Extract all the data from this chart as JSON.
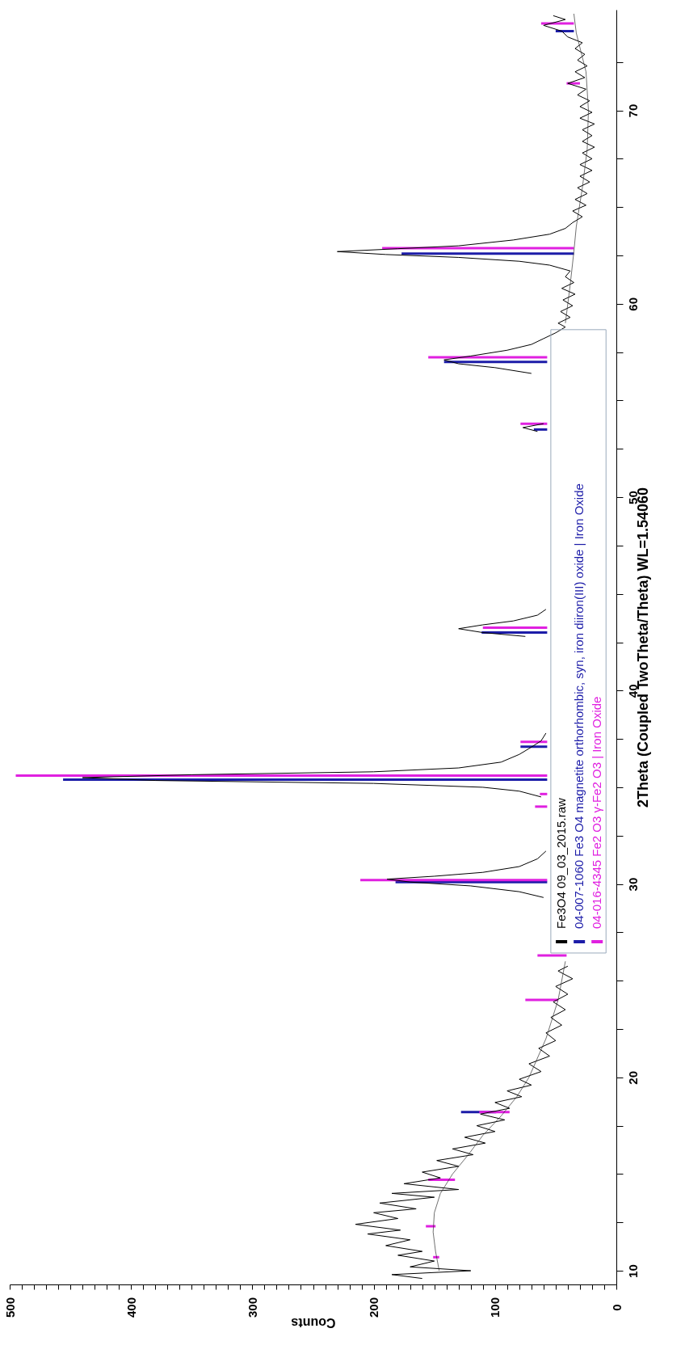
{
  "chart_data": {
    "type": "line",
    "orientation": "horizontal",
    "ylabel": "2Theta (Coupled TwoTheta/Theta) WL=1.54060",
    "xlabel": "Counts",
    "ylim": [
      9.5,
      75
    ],
    "xlim": [
      500,
      0
    ],
    "grid": false,
    "legend": "bottom",
    "yticks": [
      10,
      {
        "value": 12.5,
        "label": null
      },
      {
        "value": 15,
        "label": null
      },
      {
        "value": 17.5,
        "label": null
      },
      20,
      {
        "value": 22.5,
        "label": null
      },
      {
        "value": 25,
        "label": null
      },
      {
        "value": 27.5,
        "label": null
      },
      30,
      {
        "value": 32.5,
        "label": null
      },
      {
        "value": 35,
        "label": null
      },
      {
        "value": 37.5,
        "label": null
      },
      40,
      {
        "value": 42.5,
        "label": null
      },
      {
        "value": 45,
        "label": null
      },
      {
        "value": 47.5,
        "label": null
      },
      50,
      {
        "value": 52.5,
        "label": null
      },
      {
        "value": 55,
        "label": null
      },
      {
        "value": 57.5,
        "label": null
      },
      60,
      {
        "value": 62.5,
        "label": null
      },
      {
        "value": 65,
        "label": null
      },
      {
        "value": 67.5,
        "label": null
      },
      70,
      {
        "value": 72.5,
        "label": null
      }
    ],
    "xticks": [
      0,
      {
        "value": 10,
        "label": null
      },
      {
        "value": 20,
        "label": null
      },
      {
        "value": 30,
        "label": null
      },
      {
        "value": 40,
        "label": null
      },
      {
        "value": 50,
        "label": null
      },
      {
        "value": 60,
        "label": null
      },
      {
        "value": 70,
        "label": null
      },
      {
        "value": 80,
        "label": null
      },
      {
        "value": 90,
        "label": null
      },
      100,
      {
        "value": 110,
        "label": null
      },
      {
        "value": 120,
        "label": null
      },
      {
        "value": 130,
        "label": null
      },
      {
        "value": 140,
        "label": null
      },
      {
        "value": 150,
        "label": null
      },
      {
        "value": 160,
        "label": null
      },
      {
        "value": 170,
        "label": null
      },
      {
        "value": 180,
        "label": null
      },
      {
        "value": 190,
        "label": null
      },
      200,
      {
        "value": 210,
        "label": null
      },
      {
        "value": 220,
        "label": null
      },
      {
        "value": 230,
        "label": null
      },
      {
        "value": 240,
        "label": null
      },
      {
        "value": 250,
        "label": null
      },
      {
        "value": 260,
        "label": null
      },
      {
        "value": 270,
        "label": null
      },
      {
        "value": 280,
        "label": null
      },
      {
        "value": 290,
        "label": null
      },
      300,
      {
        "value": 310,
        "label": null
      },
      {
        "value": 320,
        "label": null
      },
      {
        "value": 330,
        "label": null
      },
      {
        "value": 340,
        "label": null
      },
      {
        "value": 350,
        "label": null
      },
      {
        "value": 360,
        "label": null
      },
      {
        "value": 370,
        "label": null
      },
      {
        "value": 380,
        "label": null
      },
      {
        "value": 390,
        "label": null
      },
      400,
      {
        "value": 410,
        "label": null
      },
      {
        "value": 420,
        "label": null
      },
      {
        "value": 430,
        "label": null
      },
      {
        "value": 440,
        "label": null
      },
      {
        "value": 450,
        "label": null
      },
      {
        "value": 460,
        "label": null
      },
      {
        "value": 470,
        "label": null
      },
      {
        "value": 480,
        "label": null
      },
      {
        "value": 490,
        "label": null
      },
      500
    ],
    "series": [
      {
        "name": "Fe3O4 09_03_2015.raw",
        "color": "#000000",
        "x": [
          9.6,
          9.8,
          10.0,
          10.2,
          10.5,
          10.8,
          11.0,
          11.3,
          11.6,
          11.9,
          12.1,
          12.4,
          12.7,
          13.0,
          13.2,
          13.5,
          13.8,
          14.0,
          14.2,
          14.5,
          14.8,
          15.1,
          15.4,
          15.7,
          16.0,
          16.3,
          16.6,
          16.9,
          17.2,
          17.5,
          17.8,
          18.1,
          18.4,
          18.7,
          19.0,
          19.3,
          19.6,
          19.9,
          20.3,
          20.7,
          21.1,
          21.5,
          21.9,
          22.3,
          22.7,
          23.1,
          23.5,
          23.9,
          24.3,
          24.7,
          25.1,
          25.5,
          25.75,
          27.5,
          29.3,
          29.6,
          29.9,
          30.1,
          30.25,
          30.4,
          30.6,
          30.9,
          31.3,
          31.7,
          33.0,
          34.5,
          34.8,
          35.0,
          35.2,
          35.35,
          35.5,
          35.65,
          35.8,
          36.0,
          36.3,
          36.7,
          37.0,
          37.4,
          37.8,
          40.0,
          42.8,
          43.0,
          43.2,
          43.4,
          43.6,
          43.9,
          44.2,
          48.0,
          53.4,
          53.6,
          53.8,
          55.0,
          56.4,
          56.7,
          56.9,
          57.1,
          57.3,
          57.6,
          57.9,
          58.2,
          58.5,
          58.8,
          59.0,
          59.3,
          59.6,
          59.9,
          60.2,
          60.5,
          60.8,
          61.1,
          61.4,
          61.7,
          62.0,
          62.2,
          62.4,
          62.55,
          62.7,
          62.85,
          63.0,
          63.3,
          63.6,
          63.9,
          64.2,
          64.5,
          64.8,
          65.1,
          65.4,
          65.7,
          66.0,
          66.3,
          66.6,
          66.9,
          67.2,
          67.5,
          67.8,
          68.1,
          68.4,
          68.7,
          69.0,
          69.3,
          69.6,
          69.9,
          70.2,
          70.5,
          70.8,
          71.1,
          71.4,
          71.7,
          72.0,
          72.3,
          72.6,
          72.9,
          73.2,
          73.5,
          73.8,
          74.1,
          74.4,
          74.7,
          74.9
        ],
        "values": [
          160,
          185,
          120,
          170,
          150,
          180,
          160,
          190,
          170,
          205,
          178,
          215,
          180,
          200,
          165,
          195,
          150,
          185,
          130,
          175,
          145,
          160,
          130,
          148,
          118,
          135,
          108,
          125,
          100,
          115,
          92,
          112,
          88,
          100,
          78,
          90,
          70,
          80,
          62,
          72,
          55,
          64,
          50,
          58,
          45,
          54,
          42,
          52,
          40,
          50,
          36,
          48,
          40,
          null,
          60,
          80,
          120,
          170,
          189,
          150,
          110,
          80,
          65,
          58,
          null,
          62,
          80,
          110,
          200,
          380,
          440,
          350,
          200,
          130,
          95,
          80,
          72,
          62,
          58,
          null,
          75,
          110,
          130,
          110,
          85,
          65,
          58,
          null,
          65,
          77,
          60,
          null,
          70,
          100,
          130,
          142,
          120,
          90,
          70,
          60,
          50,
          42,
          48,
          38,
          46,
          36,
          44,
          34,
          45,
          35,
          42,
          38,
          55,
          80,
          130,
          190,
          230,
          180,
          130,
          85,
          55,
          42,
          36,
          28,
          36,
          25,
          34,
          24,
          32,
          22,
          30,
          20,
          30,
          20,
          28,
          18,
          28,
          20,
          28,
          18,
          30,
          20,
          30,
          22,
          32,
          25,
          40,
          26,
          34,
          24,
          32,
          26,
          34,
          28,
          40,
          45,
          60,
          42,
          52
        ]
      },
      {
        "color": "#333333",
        "x": [
          10,
          11,
          12,
          13,
          14,
          15,
          16,
          17,
          18,
          19,
          20,
          22,
          24,
          26,
          27,
          58,
          59,
          61,
          62.7,
          64,
          66,
          68,
          70,
          72,
          74,
          75
        ],
        "values": [
          146,
          149,
          151,
          150,
          145,
          135,
          122,
          110,
          95,
          82,
          72,
          58,
          48,
          42,
          null,
          null,
          42,
          38,
          35,
          33,
          28,
          24,
          23,
          25,
          33,
          35
        ]
      },
      {
        "name": "04-007-1060 Fe3 O4 magnetite orthorhombic, syn, iron diiron(III) oxide | Iron Oxide",
        "type": "bar",
        "color": "#1c1ca8",
        "x": [
          18.2,
          30.1,
          35.4,
          37.1,
          43.0,
          53.5,
          57.0,
          62.6,
          74.1
        ],
        "base": [
          99,
          57,
          57,
          57,
          57,
          57,
          57,
          35,
          35
        ],
        "values": [
          29,
          125,
          399,
          22,
          54,
          11,
          85,
          142,
          15
        ]
      },
      {
        "name": "04-016-4345 Fe2 O3 γ-Fe2 O3 | Iron Oxide",
        "type": "bar",
        "color": "#e020e0",
        "x": [
          10.7,
          12.3,
          14.7,
          18.2,
          24.0,
          26.3,
          30.2,
          34.0,
          34.65,
          35.6,
          37.35,
          43.25,
          53.8,
          57.24,
          62.88,
          71.4,
          74.5
        ],
        "base": [
          146,
          149,
          133,
          88,
          48,
          41,
          57,
          57,
          57,
          57,
          57,
          57,
          57,
          57,
          35,
          30,
          35
        ],
        "values": [
          5,
          8,
          22,
          25,
          27,
          24,
          154,
          10,
          6,
          438,
          22,
          53,
          22,
          98,
          158,
          11,
          27
        ]
      }
    ]
  }
}
